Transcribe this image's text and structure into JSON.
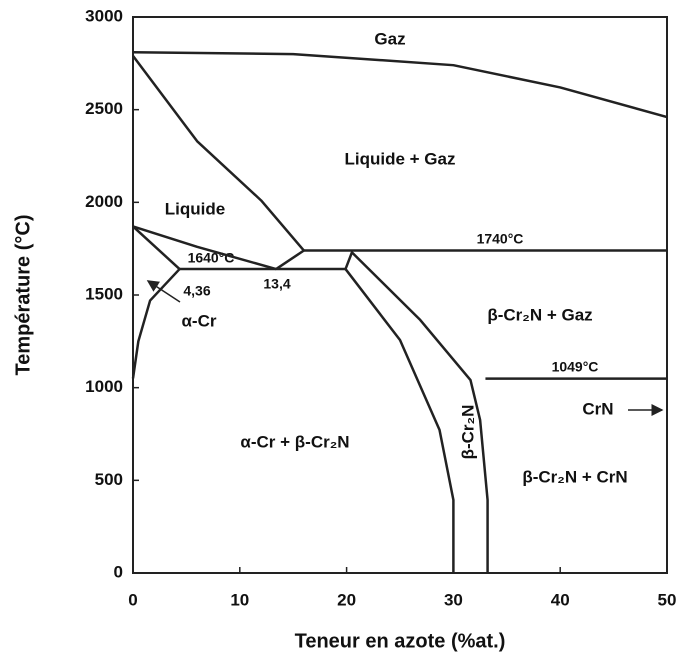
{
  "chart_data": {
    "type": "line",
    "xlabel": "Teneur en azote (%at.)",
    "ylabel": "Température (°C)",
    "xlim": [
      0,
      50
    ],
    "ylim": [
      0,
      3000
    ],
    "xticks": [
      0,
      10,
      20,
      30,
      40,
      50
    ],
    "yticks": [
      0,
      500,
      1000,
      1500,
      2000,
      2500,
      3000
    ],
    "color": "#222",
    "series": [
      {
        "x": [
          0,
          15,
          30,
          40,
          50
        ],
        "y": [
          2810,
          2800,
          2740,
          2620,
          2460
        ]
      },
      {
        "x": [
          0,
          6,
          12,
          16
        ],
        "y": [
          2790,
          2330,
          2010,
          1740
        ]
      },
      {
        "x": [
          16,
          50
        ],
        "y": [
          1740,
          1740
        ]
      },
      {
        "x": [
          13.4,
          16
        ],
        "y": [
          1640,
          1740
        ]
      },
      {
        "x": [
          4.36,
          19.9
        ],
        "y": [
          1640,
          1640
        ]
      },
      {
        "x": [
          0,
          4.36
        ],
        "y": [
          1870,
          1640
        ]
      },
      {
        "x": [
          0,
          6,
          13.4
        ],
        "y": [
          1870,
          1760,
          1640
        ]
      },
      {
        "x": [
          0,
          0.5,
          1.6,
          4.36
        ],
        "y": [
          1050,
          1250,
          1470,
          1640
        ]
      },
      {
        "x": [
          19.9,
          25,
          28.7,
          30,
          30
        ],
        "y": [
          1640,
          1257,
          772,
          394,
          0
        ]
      },
      {
        "x": [
          19.9,
          20.5,
          26.9,
          31.6,
          32.5,
          33.2,
          33.2
        ],
        "y": [
          1640,
          1730,
          1365,
          1041,
          826,
          394,
          0
        ]
      },
      {
        "x": [
          33,
          50
        ],
        "y": [
          1049,
          1049
        ]
      }
    ],
    "annotations": [
      "Gaz",
      "Liquide + Gaz",
      "Liquide",
      "1640°C",
      "1740°C",
      "4,36",
      "13,4",
      "α-Cr",
      "β-Cr₂N + Gaz",
      "1049°C",
      "CrN",
      "α-Cr + β-Cr₂N",
      "β-Cr₂N",
      "β-Cr₂N + CrN"
    ]
  }
}
